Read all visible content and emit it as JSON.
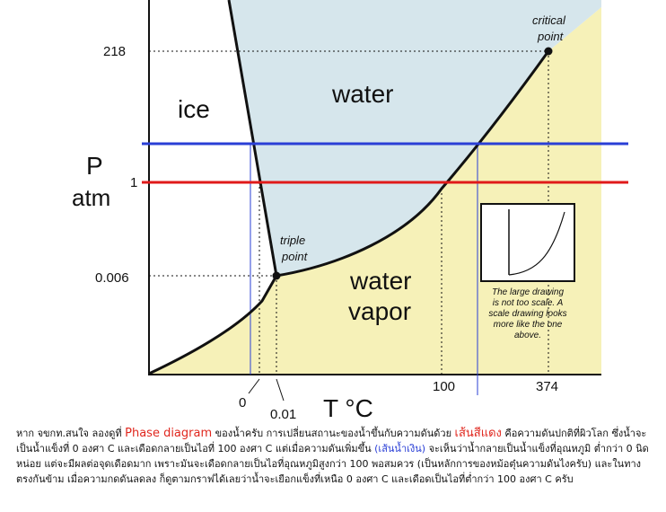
{
  "diagram": {
    "regions": {
      "ice": "ice",
      "water": "water",
      "vapor_line1": "water",
      "vapor_line2": "vapor"
    },
    "axis": {
      "p_symbol": "P",
      "p_unit": "atm",
      "t_label": "T °C"
    },
    "y_ticks": [
      "218",
      "1",
      "0.006"
    ],
    "x_ticks": [
      "0",
      "0.01",
      "100",
      "374"
    ],
    "triple_point": {
      "line1": "triple",
      "line2": "point"
    },
    "critical_point": {
      "line1": "critical",
      "line2": "point"
    },
    "inset_note": [
      "The large drawing",
      "is not too scale.  A",
      "scale drawing looks",
      "more like the one",
      "above."
    ],
    "colors": {
      "vapor_fill": "#f6f1b8",
      "water_fill": "#d6e6ec",
      "red_line": "#e01a1a",
      "blue_line": "#2a3fd6"
    }
  },
  "caption": {
    "p1": "หาก จขกท.สนใจ  ลองดูที่ ",
    "highlight_phase": "Phase diagram",
    "p2": " ของน้ำครับ  การเปลี่ยนสถานะของน้ำขึ้นกับความดันด้วย  ",
    "highlight_red": "เส้นสีแดง",
    "p3": " คือความดันปกติที่ผิวโลก  ซึ่งน้ำจะเป็นน้ำแข็งที่ 0 องศา C  และเดือดกลายเป็นไอที่ 100 องศา C    แต่เมื่อความดันเพิ่มขึ้น ",
    "highlight_blue": "(เส้นน้ำเงิน)",
    "p4": " จะเห็นว่าน้ำกลายเป็นน้ำแข็งที่อุณหภูมิ ต่ำกว่า 0 นิดหน่อย  แต่จะมีผลต่อจุดเดือดมาก  เพราะมันจะเดือดกลายเป็นไอที่อุณหภูมิสูงกว่า 100 พอสมควร (เป็นหลักการของหม้อตุ๋นความดันไงครับ)   และในทางตรงกันข้าม  เมื่อความกดดันลดลง  ก็ดูตามกราฟได้เลยว่าน้ำจะเยือกแข็งที่เหนือ 0 องศา C  และเดือดเป็นไอที่ต่ำกว่า 100 องศา C ครับ"
  }
}
